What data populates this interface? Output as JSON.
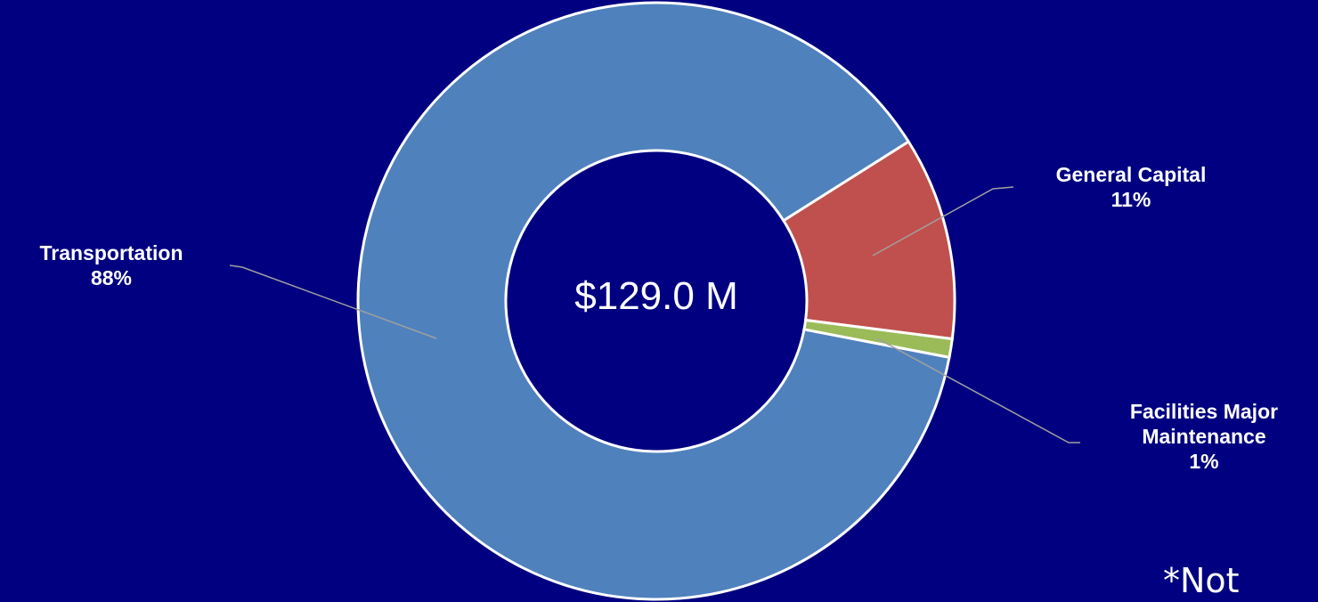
{
  "chart_data": {
    "type": "donut",
    "categories": [
      "General Capital",
      "Facilities Major Maintenance",
      "Transportation"
    ],
    "values": [
      11,
      1,
      88
    ],
    "value_labels": [
      "11%",
      "1%",
      "88%"
    ],
    "colors": [
      "#c0504d",
      "#9bbb59",
      "#4f81bd"
    ],
    "center_text": "$129.0 M",
    "annotations": [
      "*Not"
    ]
  }
}
